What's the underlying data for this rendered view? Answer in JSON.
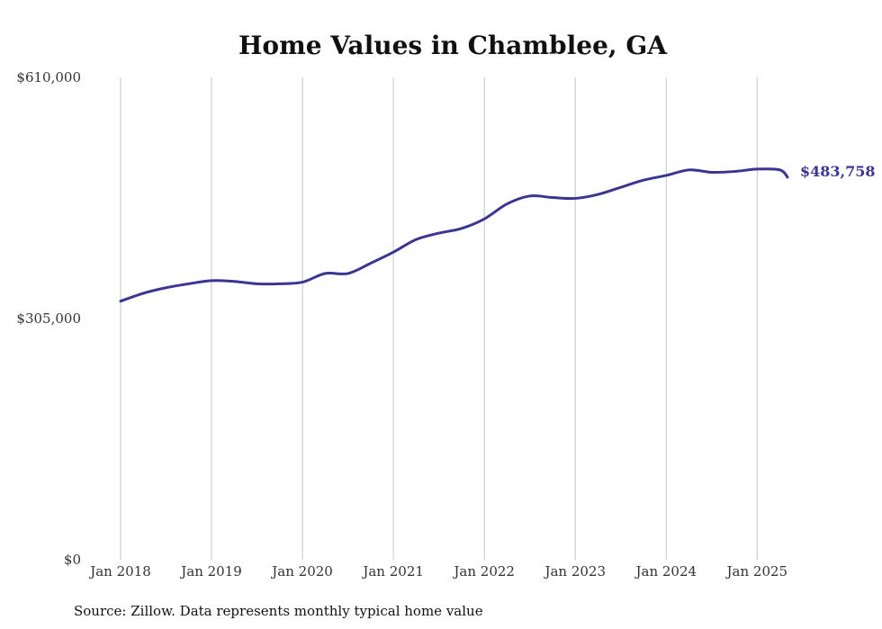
{
  "chart_data": {
    "type": "line",
    "title": "Home Values in Chamblee, GA",
    "xlabel": "",
    "ylabel": "",
    "x_tick_labels": [
      "Jan 2018",
      "Jan 2019",
      "Jan 2020",
      "Jan 2021",
      "Jan 2022",
      "Jan 2023",
      "Jan 2024",
      "Jan 2025"
    ],
    "y_tick_labels": [
      "$0",
      "$305,000",
      "$610,000"
    ],
    "ylim": [
      0,
      610000
    ],
    "xlim": [
      "2018-01",
      "2025-05"
    ],
    "grid": "vertical",
    "line_color": "#3a3592",
    "end_label": "$483,758",
    "source": "Source: Zillow. Data represents monthly typical home value",
    "series": [
      {
        "x": [
          "2018-01",
          "2018-04",
          "2018-07",
          "2018-10",
          "2019-01",
          "2019-04",
          "2019-07",
          "2019-10",
          "2020-01",
          "2020-04",
          "2020-07",
          "2020-10",
          "2021-01",
          "2021-04",
          "2021-07",
          "2021-10",
          "2022-01",
          "2022-04",
          "2022-07",
          "2022-10",
          "2023-01",
          "2023-04",
          "2023-07",
          "2023-10",
          "2024-01",
          "2024-04",
          "2024-07",
          "2024-10",
          "2025-01",
          "2025-04",
          "2025-05"
        ],
        "values": [
          327000,
          337000,
          344000,
          349000,
          353000,
          352000,
          349000,
          349000,
          351000,
          362000,
          362000,
          375000,
          389000,
          405000,
          413000,
          419000,
          431000,
          450000,
          460000,
          458000,
          457000,
          462000,
          471000,
          480000,
          486000,
          493000,
          490000,
          491000,
          494000,
          493000,
          483758
        ]
      }
    ]
  }
}
